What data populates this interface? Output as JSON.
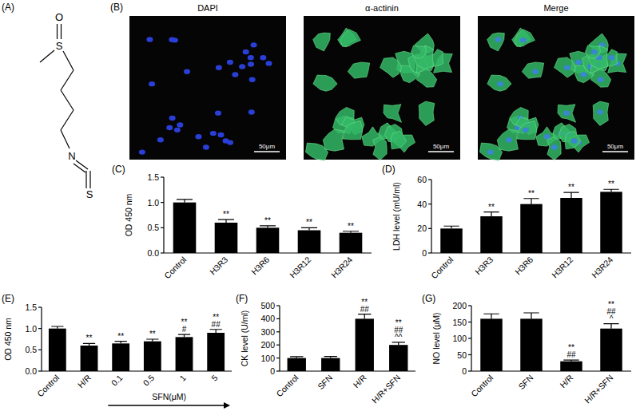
{
  "structure": {
    "panel_label": "(A)",
    "atoms": [
      "O",
      "S",
      "N",
      "S"
    ]
  },
  "images": {
    "panel_label": "(B)",
    "titles": [
      "DAPI",
      "α-actinin",
      "Merge"
    ],
    "scale_bar": "50μm"
  },
  "chart_data": [
    {
      "type": "bar",
      "panel_label": "(C)",
      "y_label": "OD 450 nm",
      "categories": [
        "Control",
        "H3R3",
        "H3R6",
        "H3R12",
        "H3R24"
      ],
      "values": [
        1,
        0.6,
        0.5,
        0.45,
        0.4
      ],
      "errors": [
        0.06,
        0.06,
        0.04,
        0.05,
        0.03
      ],
      "annotations": [
        [],
        [
          "**"
        ],
        [
          "**"
        ],
        [
          "**"
        ],
        [
          "**"
        ]
      ],
      "color": "#000000",
      "ylim": [
        0,
        1.5
      ],
      "yticks": [
        {
          "value": 0,
          "label": "0.0"
        },
        0.5,
        {
          "value": 1,
          "label": "1.0"
        },
        1.5
      ]
    },
    {
      "type": "bar",
      "panel_label": "(D)",
      "y_label": "LDH level (mU/ml)",
      "categories": [
        "Control",
        "H3R3",
        "H3R6",
        "H3R12",
        "H3R24"
      ],
      "values": [
        20,
        30,
        40,
        45,
        50
      ],
      "errors": [
        2,
        3.5,
        4.5,
        4.5,
        2
      ],
      "annotations": [
        [],
        [
          "**"
        ],
        [
          "**"
        ],
        [
          "**"
        ],
        [
          "**"
        ]
      ],
      "color": "#000000",
      "ylim": [
        0,
        60
      ],
      "yticks": [
        0,
        20,
        40,
        60
      ]
    },
    {
      "type": "bar",
      "panel_label": "(E)",
      "y_label": "OD 450 nm",
      "x_annotation": "SFN(μM)",
      "categories": [
        "Control",
        "H/R",
        "0.1",
        "0.5",
        "1",
        "5"
      ],
      "values": [
        1,
        0.6,
        0.65,
        0.7,
        0.8,
        0.9
      ],
      "errors": [
        0.05,
        0.05,
        0.05,
        0.05,
        0.06,
        0.08
      ],
      "annotations": [
        [],
        [
          "**"
        ],
        [
          "**"
        ],
        [
          "**"
        ],
        [
          "**",
          "#"
        ],
        [
          "**",
          "##"
        ]
      ],
      "color": "#000000",
      "ylim": [
        0,
        1.5
      ],
      "yticks": [
        {
          "value": 0,
          "label": "0.0"
        },
        0.5,
        {
          "value": 1,
          "label": "1.0"
        },
        1.5
      ]
    },
    {
      "type": "bar",
      "panel_label": "(F)",
      "y_label": "CK level (U/ml)",
      "categories": [
        "Control",
        "SFN",
        "H/R",
        "H/R+SFN"
      ],
      "values": [
        100,
        100,
        400,
        200
      ],
      "errors": [
        10,
        12,
        35,
        20
      ],
      "annotations": [
        [],
        [],
        [
          "**",
          "##"
        ],
        [
          "**",
          "##",
          "^^"
        ]
      ],
      "color": "#000000",
      "ylim": [
        0,
        500
      ],
      "yticks": [
        0,
        100,
        200,
        300,
        400,
        500
      ]
    },
    {
      "type": "bar",
      "panel_label": "(G)",
      "y_label": "NO level (μM)",
      "categories": [
        "Control",
        "SFN",
        "H/R",
        "H/R+SFN"
      ],
      "values": [
        160,
        160,
        30,
        130
      ],
      "errors": [
        15,
        18,
        4,
        15
      ],
      "annotations": [
        [],
        [],
        [
          "**",
          "##"
        ],
        [
          "**",
          "##",
          "^"
        ]
      ],
      "color": "#000000",
      "ylim": [
        0,
        200
      ],
      "yticks": [
        0,
        50,
        100,
        150,
        200
      ]
    }
  ]
}
